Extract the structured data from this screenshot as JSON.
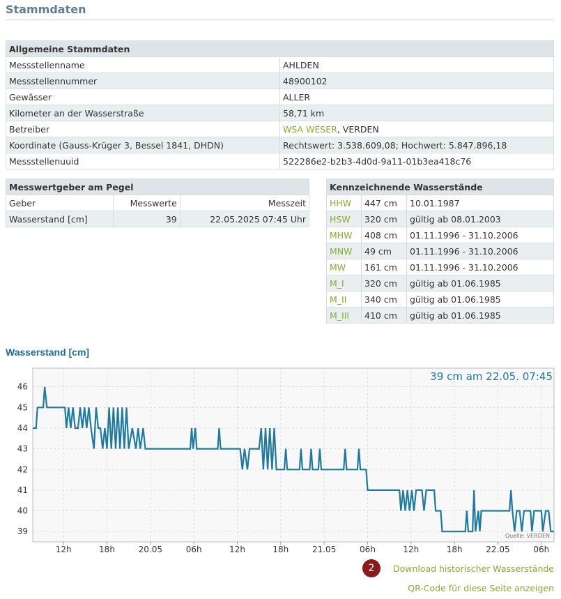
{
  "header": {
    "title": "Stammdaten"
  },
  "general": {
    "title": "Allgemeine Stammdaten",
    "rows": [
      {
        "label": "Messstellenname",
        "value": "AHLDEN"
      },
      {
        "label": "Messstellennummer",
        "value": "48900102"
      },
      {
        "label": "Gewässer",
        "value": "ALLER"
      },
      {
        "label": "Kilometer an der Wasserstraße",
        "value": "58,71 km"
      },
      {
        "label": "Betreiber",
        "link": "WSA WESER",
        "value": ", VERDEN"
      },
      {
        "label": "Koordinate (Gauss-Krüger 3, Bessel 1841, DHDN)",
        "value": "Rechtswert: 3.538.609,08; Hochwert: 5.847.896,18"
      },
      {
        "label": "Messstellenuuid",
        "value": "522286e2-b2b3-4d0d-9a11-01b3ea418c76"
      }
    ]
  },
  "gauges": {
    "title": "Messwertgeber am Pegel",
    "headers": [
      "Geber",
      "Messwerte",
      "Messzeit"
    ],
    "rows": [
      [
        "Wasserstand [cm]",
        39,
        "22.05.2025 07:45 Uhr"
      ]
    ]
  },
  "levels": {
    "title": "Kennzeichnende Wasserstände",
    "rows": [
      [
        "HHW",
        "447 cm",
        "10.01.1987"
      ],
      [
        "HSW",
        "320 cm",
        "gültig ab 08.01.2003"
      ],
      [
        "MHW",
        "408 cm",
        "01.11.1996 - 31.10.2006"
      ],
      [
        "MNW",
        "49 cm",
        "01.11.1996 - 31.10.2006"
      ],
      [
        "MW",
        "161 cm",
        "01.11.1996 - 31.10.2006"
      ],
      [
        "M_I",
        "320 cm",
        "gültig ab 01.06.1985"
      ],
      [
        "M_II",
        "340 cm",
        "gültig ab 01.06.1985"
      ],
      [
        "M_III",
        "410 cm",
        "gültig ab 01.06.1985"
      ]
    ]
  },
  "chart_data": {
    "type": "line",
    "title": "Wasserstand [cm]",
    "annotation": "39 cm am 22.05. 07:45",
    "source": "Quelle: VERDEN",
    "color": "#1f7aa0",
    "grid": true,
    "xlim": [
      7.75,
      79.75
    ],
    "ylim": [
      38.5,
      46.9
    ],
    "yticks": [
      39,
      40,
      41,
      42,
      43,
      44,
      45,
      46
    ],
    "xticks": [
      {
        "value": 12,
        "label": "12h"
      },
      {
        "value": 18,
        "label": "18h"
      },
      {
        "value": 24,
        "label": "20.05"
      },
      {
        "value": 30,
        "label": "06h"
      },
      {
        "value": 36,
        "label": "12h"
      },
      {
        "value": 42,
        "label": "18h"
      },
      {
        "value": 48,
        "label": "21.05"
      },
      {
        "value": 54,
        "label": "06h"
      },
      {
        "value": 60,
        "label": "12h"
      },
      {
        "value": 66,
        "label": "18h"
      },
      {
        "value": 72,
        "label": "22.05"
      },
      {
        "value": 78,
        "label": "06h"
      }
    ],
    "x": [
      7.75,
      8.2,
      8.4,
      9.2,
      9.4,
      9.7,
      12.2,
      12.4,
      12.7,
      13,
      13.3,
      13.6,
      14,
      14.3,
      14.6,
      14.9,
      15.2,
      15.5,
      15.8,
      16.2,
      16.5,
      16.8,
      17.1,
      17.4,
      17.7,
      18,
      18.3,
      18.6,
      18.9,
      19.2,
      19.5,
      19.8,
      20.1,
      20.4,
      20.7,
      21,
      21.5,
      22,
      22.3,
      22.6,
      23,
      23.3,
      29.5,
      29.7,
      29.9,
      30.2,
      30.4,
      33.3,
      33.5,
      33.7,
      36.4,
      36.7,
      37,
      37.4,
      37.7,
      39,
      39.3,
      39.6,
      39.9,
      40.2,
      40.5,
      40.8,
      41.1,
      41.4,
      42.5,
      42.7,
      42.9,
      44.6,
      44.8,
      45,
      46,
      46.2,
      46.4,
      47.2,
      47.4,
      47.6,
      50.7,
      50.9,
      51.1,
      52.6,
      52.8,
      53,
      53.8,
      54,
      58.4,
      58.6,
      58.9,
      59.2,
      59.5,
      59.8,
      60.1,
      60.4,
      60.7,
      61.5,
      61.8,
      62.1,
      63.2,
      63.4,
      64.1,
      64.3,
      67.5,
      67.7,
      67.9,
      68.5,
      68.7,
      68.9,
      69.3,
      69.5,
      69.7,
      73.6,
      73.8,
      74,
      74.3,
      74.6,
      75,
      75.3,
      75.6,
      76.5,
      76.7,
      77,
      78,
      78.2,
      78.6,
      79,
      79.3,
      79.75
    ],
    "values": [
      44,
      44,
      45,
      45,
      46,
      45,
      45,
      44,
      45,
      44,
      45,
      44,
      44,
      45,
      44,
      45,
      44,
      45,
      44,
      43,
      45,
      44,
      44,
      43,
      44,
      43,
      45,
      43,
      45,
      43,
      45,
      43,
      45,
      43,
      45,
      43,
      44,
      43,
      44,
      43,
      44,
      43,
      43,
      44,
      43,
      44,
      43,
      43,
      44,
      43,
      43,
      42,
      43,
      42,
      43,
      43,
      44,
      42,
      44,
      42,
      44,
      42,
      44,
      42,
      42,
      43,
      42,
      42,
      43,
      42,
      42,
      43,
      42,
      42,
      43,
      42,
      42,
      43,
      42,
      42,
      43,
      42,
      42,
      41,
      41,
      40,
      41,
      40,
      41,
      40,
      41,
      40,
      41,
      41,
      40,
      41,
      41,
      40,
      40,
      39,
      39,
      40,
      39,
      39,
      41,
      39,
      40,
      39,
      40,
      40,
      41,
      40,
      39,
      40,
      40,
      39,
      40,
      40,
      39,
      40,
      40,
      39,
      40,
      40,
      39,
      39
    ]
  },
  "actions": {
    "badge": "2",
    "download": "Download historischer Wasserstände",
    "qr": "QR-Code für diese Seite anzeigen"
  }
}
